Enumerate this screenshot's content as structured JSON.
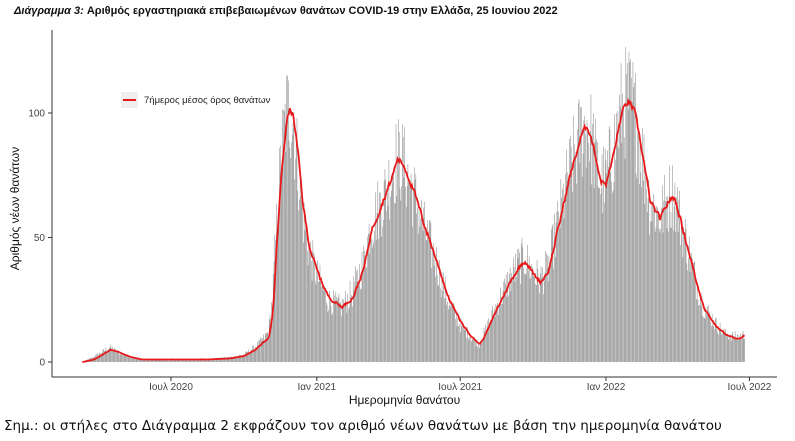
{
  "chart_data": {
    "type": "bar",
    "title_prefix": "Διάγραμμα 3:",
    "title": "Αριθμός εργαστηριακά επιβεβαιωμένων θανάτων COVID-19 στην Ελλάδα, 25 Ιουνίου 2022",
    "xlabel": "Ημερομηνία θανάτου",
    "ylabel": "Αριθμός νέων θανάτων",
    "ylim": [
      0,
      130
    ],
    "yticks": [
      0,
      50,
      100
    ],
    "x_tick_labels": [
      "Ιουλ 2020",
      "Ιαν 2021",
      "Ιουλ 2021",
      "Ιαν 2022",
      "Ιουλ 2022"
    ],
    "x_tick_dates": [
      "2020-07-01",
      "2021-01-01",
      "2021-07-01",
      "2022-01-01",
      "2022-07-01"
    ],
    "date_range": [
      "2020-03-11",
      "2022-06-25"
    ],
    "grid": false,
    "legend_position": "top-left",
    "series": [
      {
        "kind": "bars",
        "color": "#8c8c8c",
        "note": "daily new deaths (approximate, read off the chart)",
        "points": [
          [
            "2020-03-11",
            0
          ],
          [
            "2020-03-25",
            2
          ],
          [
            "2020-04-05",
            4
          ],
          [
            "2020-04-15",
            6
          ],
          [
            "2020-04-25",
            4
          ],
          [
            "2020-05-10",
            2
          ],
          [
            "2020-05-25",
            1
          ],
          [
            "2020-06-15",
            1
          ],
          [
            "2020-07-15",
            1
          ],
          [
            "2020-08-15",
            1
          ],
          [
            "2020-09-15",
            2
          ],
          [
            "2020-10-01",
            3
          ],
          [
            "2020-10-15",
            6
          ],
          [
            "2020-10-25",
            9
          ],
          [
            "2020-11-01",
            12
          ],
          [
            "2020-11-06",
            25
          ],
          [
            "2020-11-12",
            60
          ],
          [
            "2020-11-18",
            85
          ],
          [
            "2020-11-24",
            100
          ],
          [
            "2020-11-28",
            102
          ],
          [
            "2020-12-02",
            97
          ],
          [
            "2020-12-08",
            80
          ],
          [
            "2020-12-14",
            60
          ],
          [
            "2020-12-22",
            45
          ],
          [
            "2021-01-01",
            35
          ],
          [
            "2021-01-15",
            25
          ],
          [
            "2021-02-01",
            22
          ],
          [
            "2021-02-15",
            28
          ],
          [
            "2021-03-01",
            40
          ],
          [
            "2021-03-10",
            55
          ],
          [
            "2021-03-25",
            65
          ],
          [
            "2021-04-05",
            75
          ],
          [
            "2021-04-12",
            82
          ],
          [
            "2021-04-20",
            80
          ],
          [
            "2021-05-01",
            70
          ],
          [
            "2021-05-15",
            55
          ],
          [
            "2021-06-01",
            40
          ],
          [
            "2021-06-15",
            25
          ],
          [
            "2021-07-01",
            15
          ],
          [
            "2021-07-15",
            10
          ],
          [
            "2021-07-25",
            7
          ],
          [
            "2021-08-01",
            12
          ],
          [
            "2021-08-15",
            22
          ],
          [
            "2021-09-01",
            33
          ],
          [
            "2021-09-10",
            38
          ],
          [
            "2021-09-20",
            42
          ],
          [
            "2021-10-01",
            36
          ],
          [
            "2021-10-10",
            33
          ],
          [
            "2021-10-20",
            38
          ],
          [
            "2021-11-01",
            55
          ],
          [
            "2021-11-15",
            75
          ],
          [
            "2021-12-01",
            92
          ],
          [
            "2021-12-08",
            96
          ],
          [
            "2021-12-15",
            88
          ],
          [
            "2021-12-25",
            72
          ],
          [
            "2022-01-01",
            73
          ],
          [
            "2022-01-10",
            85
          ],
          [
            "2022-01-20",
            100
          ],
          [
            "2022-01-28",
            106
          ],
          [
            "2022-02-05",
            102
          ],
          [
            "2022-02-15",
            85
          ],
          [
            "2022-02-25",
            65
          ],
          [
            "2022-03-10",
            58
          ],
          [
            "2022-03-20",
            66
          ],
          [
            "2022-03-28",
            68
          ],
          [
            "2022-04-05",
            57
          ],
          [
            "2022-04-15",
            45
          ],
          [
            "2022-04-25",
            32
          ],
          [
            "2022-05-05",
            22
          ],
          [
            "2022-05-20",
            15
          ],
          [
            "2022-06-01",
            11
          ],
          [
            "2022-06-15",
            10
          ],
          [
            "2022-06-25",
            11
          ]
        ]
      },
      {
        "name": "7ήμερος μέσος όρος θανάτων",
        "kind": "line",
        "color": "#e8191b",
        "points": [
          [
            "2020-03-11",
            0
          ],
          [
            "2020-03-25",
            1
          ],
          [
            "2020-04-05",
            3
          ],
          [
            "2020-04-15",
            5
          ],
          [
            "2020-04-25",
            4
          ],
          [
            "2020-05-10",
            2
          ],
          [
            "2020-05-25",
            1
          ],
          [
            "2020-06-15",
            1
          ],
          [
            "2020-07-15",
            1
          ],
          [
            "2020-08-15",
            1
          ],
          [
            "2020-09-15",
            1.5
          ],
          [
            "2020-10-01",
            2.5
          ],
          [
            "2020-10-15",
            5
          ],
          [
            "2020-10-25",
            8
          ],
          [
            "2020-11-01",
            10
          ],
          [
            "2020-11-06",
            20
          ],
          [
            "2020-11-12",
            55
          ],
          [
            "2020-11-18",
            82
          ],
          [
            "2020-11-24",
            99
          ],
          [
            "2020-11-28",
            102
          ],
          [
            "2020-12-02",
            98
          ],
          [
            "2020-12-08",
            82
          ],
          [
            "2020-12-14",
            62
          ],
          [
            "2020-12-22",
            46
          ],
          [
            "2021-01-01",
            36
          ],
          [
            "2021-01-15",
            26
          ],
          [
            "2021-02-01",
            22
          ],
          [
            "2021-02-15",
            26
          ],
          [
            "2021-03-01",
            38
          ],
          [
            "2021-03-10",
            53
          ],
          [
            "2021-03-25",
            65
          ],
          [
            "2021-04-05",
            74
          ],
          [
            "2021-04-12",
            82
          ],
          [
            "2021-04-20",
            79
          ],
          [
            "2021-05-01",
            70
          ],
          [
            "2021-05-15",
            56
          ],
          [
            "2021-06-01",
            40
          ],
          [
            "2021-06-15",
            26
          ],
          [
            "2021-07-01",
            16
          ],
          [
            "2021-07-15",
            10
          ],
          [
            "2021-07-25",
            7
          ],
          [
            "2021-08-01",
            11
          ],
          [
            "2021-08-15",
            21
          ],
          [
            "2021-09-01",
            32
          ],
          [
            "2021-09-10",
            37
          ],
          [
            "2021-09-20",
            41
          ],
          [
            "2021-10-01",
            35
          ],
          [
            "2021-10-10",
            32
          ],
          [
            "2021-10-20",
            37
          ],
          [
            "2021-11-01",
            54
          ],
          [
            "2021-11-15",
            74
          ],
          [
            "2021-12-01",
            92
          ],
          [
            "2021-12-08",
            95
          ],
          [
            "2021-12-15",
            87
          ],
          [
            "2021-12-25",
            72
          ],
          [
            "2022-01-01",
            72
          ],
          [
            "2022-01-10",
            84
          ],
          [
            "2022-01-20",
            100
          ],
          [
            "2022-01-28",
            105
          ],
          [
            "2022-02-05",
            101
          ],
          [
            "2022-02-15",
            84
          ],
          [
            "2022-02-25",
            64
          ],
          [
            "2022-03-10",
            57
          ],
          [
            "2022-03-20",
            65
          ],
          [
            "2022-03-28",
            66
          ],
          [
            "2022-04-05",
            56
          ],
          [
            "2022-04-15",
            44
          ],
          [
            "2022-04-25",
            31
          ],
          [
            "2022-05-05",
            21
          ],
          [
            "2022-05-20",
            14
          ],
          [
            "2022-06-01",
            11
          ],
          [
            "2022-06-15",
            9
          ],
          [
            "2022-06-25",
            11
          ]
        ]
      }
    ]
  },
  "footnote": "Σημ.: οι στήλες στο Διάγραμμα 2 εκφράζουν τον αριθμό νέων θανάτων με βάση την ημερομηνία θανάτου"
}
